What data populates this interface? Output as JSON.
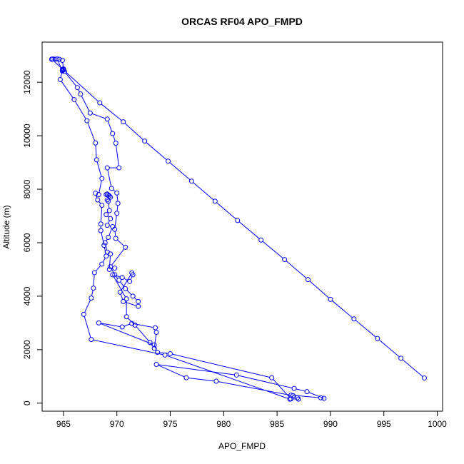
{
  "chart_data": {
    "type": "line",
    "title": "ORCAS RF04 APO_FMPD",
    "xlabel": "APO_FMPD",
    "ylabel": "Altitude (m)",
    "xlim": [
      963,
      1000.5
    ],
    "ylim": [
      -300,
      13500
    ],
    "xticks": [
      965,
      970,
      975,
      980,
      985,
      990,
      995,
      1000
    ],
    "yticks": [
      0,
      2000,
      4000,
      6000,
      8000,
      10000,
      12000
    ],
    "grid": false,
    "legend": "none",
    "series": [
      {
        "color": "#0000ff",
        "marker": "open-circle",
        "points": [
          [
            963.9,
            12860
          ],
          [
            964.2,
            12860
          ],
          [
            964.6,
            12860
          ],
          [
            964.9,
            12820
          ],
          [
            965.0,
            12500
          ],
          [
            964.9,
            12450
          ],
          [
            964.7,
            12100
          ],
          [
            966.0,
            11350
          ],
          [
            967.2,
            10560
          ],
          [
            968.0,
            9730
          ],
          [
            968.1,
            9100
          ],
          [
            968.6,
            8400
          ],
          [
            968.3,
            7800
          ],
          [
            968.0,
            7850
          ],
          [
            968.2,
            7600
          ],
          [
            968.6,
            7400
          ],
          [
            968.5,
            6700
          ],
          [
            968.5,
            6450
          ],
          [
            968.8,
            5900
          ],
          [
            969.0,
            5500
          ],
          [
            968.6,
            5200
          ],
          [
            967.9,
            4880
          ],
          [
            967.8,
            4300
          ],
          [
            967.6,
            3930
          ],
          [
            966.9,
            3320
          ],
          [
            967.6,
            2380
          ],
          [
            974.5,
            1800
          ],
          [
            986.2,
            150
          ],
          [
            986.3,
            300
          ],
          [
            989.1,
            200
          ],
          [
            989.4,
            180
          ],
          [
            987.8,
            430
          ],
          [
            986.6,
            550
          ],
          [
            981.2,
            1050
          ],
          [
            973.7,
            1450
          ],
          [
            976.5,
            950
          ],
          [
            979.3,
            820
          ],
          [
            986.5,
            280
          ],
          [
            986.9,
            200
          ],
          [
            987.0,
            150
          ],
          [
            986.3,
            160
          ],
          [
            984.5,
            950
          ],
          [
            975.0,
            1850
          ],
          [
            973.8,
            1900
          ],
          [
            973.5,
            2180
          ],
          [
            968.3,
            3000
          ],
          [
            970.5,
            2850
          ],
          [
            971.4,
            2980
          ],
          [
            973.6,
            2820
          ],
          [
            973.7,
            2650
          ],
          [
            973.5,
            2050
          ],
          [
            973.1,
            2270
          ],
          [
            971.7,
            2920
          ],
          [
            970.9,
            3230
          ],
          [
            970.9,
            3900
          ],
          [
            969.6,
            4800
          ],
          [
            970.5,
            4700
          ],
          [
            971.2,
            4550
          ],
          [
            971.5,
            4800
          ],
          [
            971.4,
            4870
          ],
          [
            970.3,
            4150
          ],
          [
            970.6,
            3800
          ],
          [
            972.0,
            3620
          ],
          [
            972.0,
            3800
          ],
          [
            971.5,
            4000
          ],
          [
            970.8,
            4280
          ],
          [
            970.2,
            4600
          ],
          [
            969.8,
            4800
          ],
          [
            969.4,
            5100
          ],
          [
            970.8,
            5830
          ],
          [
            969.9,
            6160
          ],
          [
            969.8,
            6500
          ],
          [
            970.0,
            7100
          ],
          [
            970.1,
            7470
          ],
          [
            970.0,
            7860
          ],
          [
            969.5,
            8030
          ],
          [
            969.1,
            8800
          ],
          [
            970.2,
            8800
          ],
          [
            969.9,
            9720
          ],
          [
            969.6,
            10080
          ],
          [
            969.1,
            10620
          ],
          [
            967.5,
            10850
          ],
          [
            966.6,
            11560
          ],
          [
            966.3,
            11800
          ],
          [
            965.1,
            12400
          ],
          [
            965.0,
            12470
          ],
          [
            964.9,
            12480
          ],
          [
            964.9,
            12420
          ],
          [
            964.4,
            12870
          ],
          [
            964.0,
            12870
          ],
          [
            963.9,
            12860
          ],
          [
            968.4,
            11230
          ],
          [
            970.6,
            10520
          ],
          [
            972.6,
            9800
          ],
          [
            974.8,
            9050
          ],
          [
            977.0,
            8300
          ],
          [
            979.2,
            7550
          ],
          [
            981.3,
            6830
          ],
          [
            983.5,
            6100
          ],
          [
            985.7,
            5370
          ],
          [
            987.9,
            4620
          ],
          [
            990.0,
            3880
          ],
          [
            992.2,
            3150
          ],
          [
            994.4,
            2420
          ],
          [
            996.6,
            1680
          ],
          [
            998.8,
            940
          ]
        ]
      },
      {
        "color": "#0000ff",
        "marker": "open-circle",
        "points": [
          [
            969.1,
            7820
          ],
          [
            969.2,
            7780
          ],
          [
            969.3,
            7750
          ],
          [
            969.0,
            7800
          ],
          [
            969.4,
            7700
          ],
          [
            969.1,
            7600
          ],
          [
            969.2,
            7550
          ],
          [
            969.3,
            7200
          ],
          [
            969.0,
            7050
          ],
          [
            969.4,
            6900
          ],
          [
            969.1,
            6650
          ],
          [
            969.6,
            6600
          ],
          [
            969.2,
            6200
          ],
          [
            968.9,
            6000
          ],
          [
            969.1,
            5650
          ],
          [
            969.4,
            5580
          ],
          [
            969.3,
            5000
          ],
          [
            969.8,
            5050
          ]
        ]
      }
    ]
  }
}
